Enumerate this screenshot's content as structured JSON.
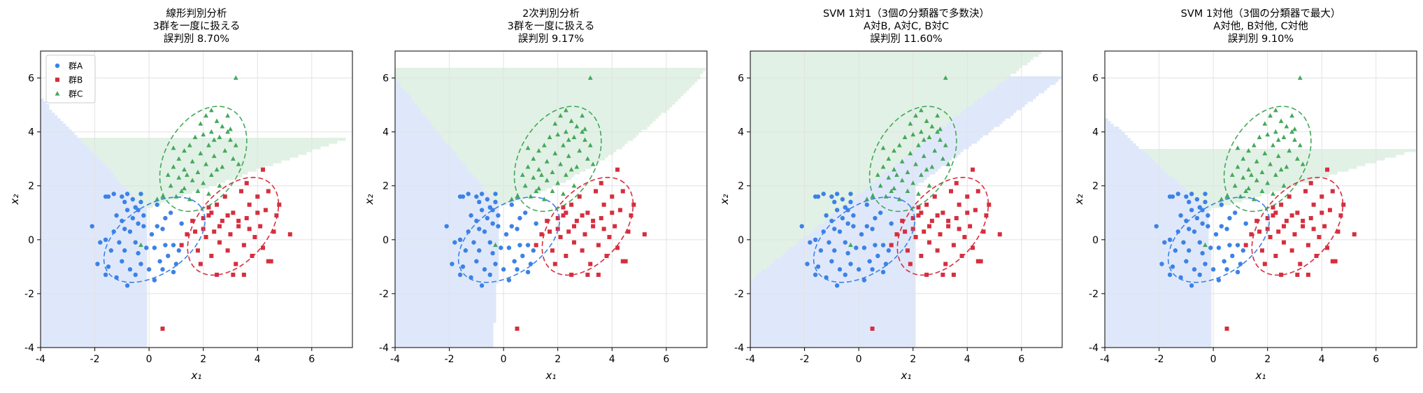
{
  "colors": {
    "A": "#3b82e6",
    "B": "#d62e3e",
    "C": "#44a85a",
    "regionA": "#dfe8fa",
    "regionB": "#f8dfe1",
    "regionC": "#e1f1e5",
    "grid": "#e2e2e2"
  },
  "icons": {
    "A": "circle",
    "B": "square",
    "C": "triangle-up"
  },
  "legend": {
    "placement": "top-left",
    "labels": [
      "群A",
      "群B",
      "群C"
    ]
  },
  "chart_data": [
    {
      "type": "scatter",
      "title_lines": [
        "線形判別分析",
        "3群を一度に扱える",
        "誤判別 8.70%"
      ],
      "xlabel": "x₁",
      "ylabel": "x₂",
      "xlim": [
        -4,
        7.5
      ],
      "ylim": [
        -4,
        7
      ],
      "xticks": [
        -4,
        -2,
        0,
        2,
        4,
        6
      ],
      "yticks": [
        -4,
        -2,
        0,
        2,
        4,
        6
      ],
      "grid": true,
      "show_legend": true,
      "boundary_kind": "linear-lda"
    },
    {
      "type": "scatter",
      "title_lines": [
        "2次判別分析",
        "3群を一度に扱える",
        "誤判別 9.17%"
      ],
      "xlabel": "x₁",
      "ylabel": "x₂",
      "xlim": [
        -4,
        7.5
      ],
      "ylim": [
        -4,
        7
      ],
      "xticks": [
        -4,
        -2,
        0,
        2,
        4,
        6
      ],
      "yticks": [
        -4,
        -2,
        0,
        2,
        4,
        6
      ],
      "grid": true,
      "show_legend": false,
      "boundary_kind": "quadratic-qda"
    },
    {
      "type": "scatter",
      "title_lines": [
        "SVM 1対1（3個の分類器で多数決）",
        "A対B, A対C, B対C",
        "誤判別 11.60%"
      ],
      "xlabel": "x₁",
      "ylabel": "x₂",
      "xlim": [
        -4,
        7.5
      ],
      "ylim": [
        -4,
        7
      ],
      "xticks": [
        -4,
        -2,
        0,
        2,
        4,
        6
      ],
      "yticks": [
        -4,
        -2,
        0,
        2,
        4,
        6
      ],
      "grid": true,
      "show_legend": false,
      "boundary_kind": "svm-ovo"
    },
    {
      "type": "scatter",
      "title_lines": [
        "SVM 1対他（3個の分類器で最大）",
        "A対他, B対他, C対他",
        "誤判別 9.10%"
      ],
      "xlabel": "x₁",
      "ylabel": "x₂",
      "xlim": [
        -4,
        7.5
      ],
      "ylim": [
        -4,
        7
      ],
      "xticks": [
        -4,
        -2,
        0,
        2,
        4,
        6
      ],
      "yticks": [
        -4,
        -2,
        0,
        2,
        4,
        6
      ],
      "grid": true,
      "show_legend": false,
      "boundary_kind": "svm-ovr"
    }
  ],
  "ellipses": [
    {
      "group": "A",
      "center": [
        0.2,
        0
      ],
      "semi_axes": [
        2.1,
        1.25
      ],
      "angle_deg": 35
    },
    {
      "group": "B",
      "center": [
        3.1,
        0.5
      ],
      "semi_axes": [
        2.1,
        1.3
      ],
      "angle_deg": 50
    },
    {
      "group": "C",
      "center": [
        2.0,
        3.0
      ],
      "semi_axes": [
        2.1,
        1.4
      ],
      "angle_deg": 60
    }
  ],
  "points": {
    "A": [
      [
        -2.1,
        0.5
      ],
      [
        -1.5,
        1.6
      ],
      [
        -1.6,
        1.6
      ],
      [
        -1.3,
        1.7
      ],
      [
        -1.0,
        1.6
      ],
      [
        -0.8,
        1.7
      ],
      [
        -0.6,
        1.5
      ],
      [
        -0.9,
        1.4
      ],
      [
        -0.5,
        1.2
      ],
      [
        -0.3,
        1.7
      ],
      [
        -0.4,
        1.1
      ],
      [
        -0.8,
        1.1
      ],
      [
        -1.2,
        0.9
      ],
      [
        -1.0,
        0.7
      ],
      [
        -0.6,
        0.8
      ],
      [
        -0.2,
        0.9
      ],
      [
        -0.4,
        0.6
      ],
      [
        -0.9,
        0.4
      ],
      [
        -1.3,
        0.3
      ],
      [
        -0.7,
        0.3
      ],
      [
        -0.2,
        0.5
      ],
      [
        0.3,
        0.5
      ],
      [
        0.5,
        0.4
      ],
      [
        0.1,
        0.2
      ],
      [
        -0.5,
        -0.1
      ],
      [
        -1.1,
        -0.1
      ],
      [
        -1.6,
        0.0
      ],
      [
        -1.8,
        -0.1
      ],
      [
        -0.9,
        -0.4
      ],
      [
        -0.4,
        -0.5
      ],
      [
        0.2,
        -0.3
      ],
      [
        0.6,
        -0.2
      ],
      [
        0.9,
        -0.2
      ],
      [
        -1.0,
        -0.8
      ],
      [
        -1.5,
        -1.0
      ],
      [
        -1.9,
        -0.9
      ],
      [
        -0.7,
        -1.1
      ],
      [
        -0.3,
        -0.9
      ],
      [
        0.4,
        -0.8
      ],
      [
        0.7,
        -0.6
      ],
      [
        1.0,
        -0.9
      ],
      [
        0.5,
        -1.1
      ],
      [
        0.0,
        -1.1
      ],
      [
        -1.2,
        -1.4
      ],
      [
        -1.6,
        -1.3
      ],
      [
        -0.5,
        -1.3
      ],
      [
        0.9,
        -1.2
      ],
      [
        0.2,
        -1.5
      ],
      [
        -0.8,
        -1.7
      ],
      [
        1.2,
        0.6
      ],
      [
        0.8,
        1.0
      ],
      [
        1.1,
        -0.4
      ],
      [
        -1.4,
        -0.4
      ],
      [
        -0.1,
        -0.3
      ],
      [
        0.6,
        0.8
      ],
      [
        -0.3,
        1.4
      ],
      [
        0.3,
        1.3
      ]
    ],
    "B": [
      [
        0.5,
        -3.3
      ],
      [
        1.2,
        -0.2
      ],
      [
        1.4,
        0.2
      ],
      [
        1.6,
        0.7
      ],
      [
        1.8,
        -0.4
      ],
      [
        2.0,
        0.4
      ],
      [
        2.1,
        0.1
      ],
      [
        2.2,
        0.9
      ],
      [
        2.3,
        -0.6
      ],
      [
        2.4,
        0.3
      ],
      [
        2.5,
        1.3
      ],
      [
        2.6,
        -0.1
      ],
      [
        2.7,
        0.7
      ],
      [
        2.8,
        1.6
      ],
      [
        2.9,
        -0.4
      ],
      [
        3.0,
        0.2
      ],
      [
        3.1,
        1.0
      ],
      [
        3.2,
        -0.9
      ],
      [
        3.3,
        0.5
      ],
      [
        3.4,
        1.8
      ],
      [
        3.5,
        -0.2
      ],
      [
        3.6,
        0.8
      ],
      [
        3.7,
        1.3
      ],
      [
        3.8,
        -0.6
      ],
      [
        3.9,
        0.1
      ],
      [
        4.0,
        1.6
      ],
      [
        4.1,
        0.5
      ],
      [
        4.2,
        -0.3
      ],
      [
        4.3,
        1.1
      ],
      [
        4.4,
        1.8
      ],
      [
        4.5,
        -0.8
      ],
      [
        4.6,
        0.3
      ],
      [
        4.7,
        0.9
      ],
      [
        4.8,
        1.3
      ],
      [
        5.2,
        0.2
      ],
      [
        4.2,
        2.6
      ],
      [
        3.6,
        2.1
      ],
      [
        2.2,
        1.2
      ],
      [
        1.9,
        -0.9
      ],
      [
        2.5,
        -1.3
      ],
      [
        3.1,
        -1.3
      ],
      [
        3.5,
        -1.3
      ],
      [
        4.4,
        -0.8
      ],
      [
        2.0,
        0.8
      ],
      [
        3.7,
        0.4
      ],
      [
        4.0,
        1.0
      ],
      [
        2.9,
        0.9
      ],
      [
        2.3,
        1.0
      ],
      [
        1.7,
        0.3
      ],
      [
        2.6,
        0.5
      ],
      [
        3.3,
        0.7
      ]
    ],
    "C": [
      [
        3.2,
        6.0
      ],
      [
        2.1,
        4.6
      ],
      [
        2.3,
        4.8
      ],
      [
        2.5,
        4.4
      ],
      [
        2.9,
        4.6
      ],
      [
        2.7,
        4.2
      ],
      [
        2.3,
        4.0
      ],
      [
        2.0,
        3.9
      ],
      [
        1.7,
        3.8
      ],
      [
        2.6,
        3.8
      ],
      [
        3.0,
        3.7
      ],
      [
        1.5,
        3.5
      ],
      [
        2.2,
        3.5
      ],
      [
        2.8,
        3.3
      ],
      [
        1.3,
        3.3
      ],
      [
        1.9,
        3.2
      ],
      [
        2.4,
        3.1
      ],
      [
        3.1,
        3.0
      ],
      [
        1.1,
        3.0
      ],
      [
        1.6,
        2.9
      ],
      [
        2.1,
        2.8
      ],
      [
        2.7,
        2.7
      ],
      [
        0.9,
        2.7
      ],
      [
        1.3,
        2.6
      ],
      [
        1.8,
        2.5
      ],
      [
        2.3,
        2.4
      ],
      [
        0.7,
        2.4
      ],
      [
        1.1,
        2.3
      ],
      [
        1.6,
        2.2
      ],
      [
        2.0,
        2.1
      ],
      [
        0.8,
        2.0
      ],
      [
        1.3,
        1.9
      ],
      [
        1.8,
        1.8
      ],
      [
        0.5,
        1.6
      ],
      [
        1.0,
        1.6
      ],
      [
        1.5,
        1.5
      ],
      [
        2.2,
        1.7
      ],
      [
        2.6,
        2.0
      ],
      [
        3.3,
        2.8
      ],
      [
        3.2,
        3.5
      ],
      [
        2.4,
        3.7
      ],
      [
        0.9,
        3.4
      ],
      [
        0.3,
        1.5
      ],
      [
        -0.3,
        -0.2
      ],
      [
        1.9,
        4.3
      ],
      [
        3.0,
        4.1
      ],
      [
        1.4,
        2.4
      ],
      [
        2.5,
        2.6
      ],
      [
        1.2,
        1.8
      ],
      [
        2.9,
        4.0
      ]
    ]
  }
}
